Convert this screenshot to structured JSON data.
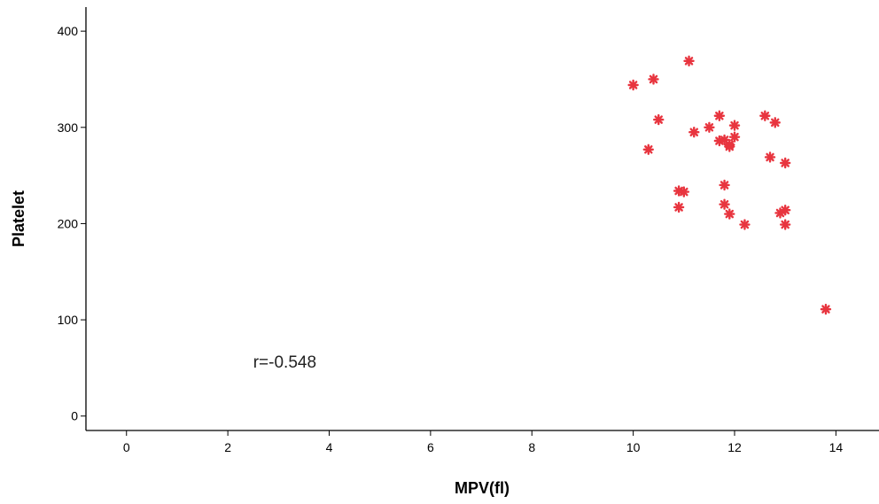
{
  "chart_data": {
    "type": "scatter",
    "xlabel": "MPV(fl)",
    "ylabel": "Platelet",
    "x_ticks": [
      0,
      2,
      4,
      6,
      8,
      10,
      12,
      14
    ],
    "y_ticks": [
      0,
      100,
      200,
      300,
      400
    ],
    "xlim": [
      -0.8,
      14.85
    ],
    "ylim": [
      -15,
      425
    ],
    "marker_color": "#e8353f",
    "marker": "asterisk",
    "annotation": {
      "text": "r=-0.548",
      "x": 2.5,
      "y": 57
    },
    "points": [
      {
        "x": 10.0,
        "y": 344
      },
      {
        "x": 10.4,
        "y": 350
      },
      {
        "x": 11.1,
        "y": 369
      },
      {
        "x": 10.5,
        "y": 308
      },
      {
        "x": 10.3,
        "y": 277
      },
      {
        "x": 10.9,
        "y": 234
      },
      {
        "x": 11.0,
        "y": 233
      },
      {
        "x": 10.9,
        "y": 217
      },
      {
        "x": 11.2,
        "y": 295
      },
      {
        "x": 11.5,
        "y": 300
      },
      {
        "x": 11.7,
        "y": 312
      },
      {
        "x": 11.7,
        "y": 286
      },
      {
        "x": 11.8,
        "y": 287
      },
      {
        "x": 11.9,
        "y": 282
      },
      {
        "x": 11.9,
        "y": 280
      },
      {
        "x": 12.0,
        "y": 302
      },
      {
        "x": 12.0,
        "y": 290
      },
      {
        "x": 11.8,
        "y": 240
      },
      {
        "x": 11.8,
        "y": 220
      },
      {
        "x": 11.9,
        "y": 210
      },
      {
        "x": 12.2,
        "y": 199
      },
      {
        "x": 12.6,
        "y": 312
      },
      {
        "x": 12.8,
        "y": 305
      },
      {
        "x": 12.7,
        "y": 269
      },
      {
        "x": 13.0,
        "y": 263
      },
      {
        "x": 12.9,
        "y": 211
      },
      {
        "x": 13.0,
        "y": 214
      },
      {
        "x": 13.0,
        "y": 199
      },
      {
        "x": 13.8,
        "y": 111
      }
    ]
  }
}
